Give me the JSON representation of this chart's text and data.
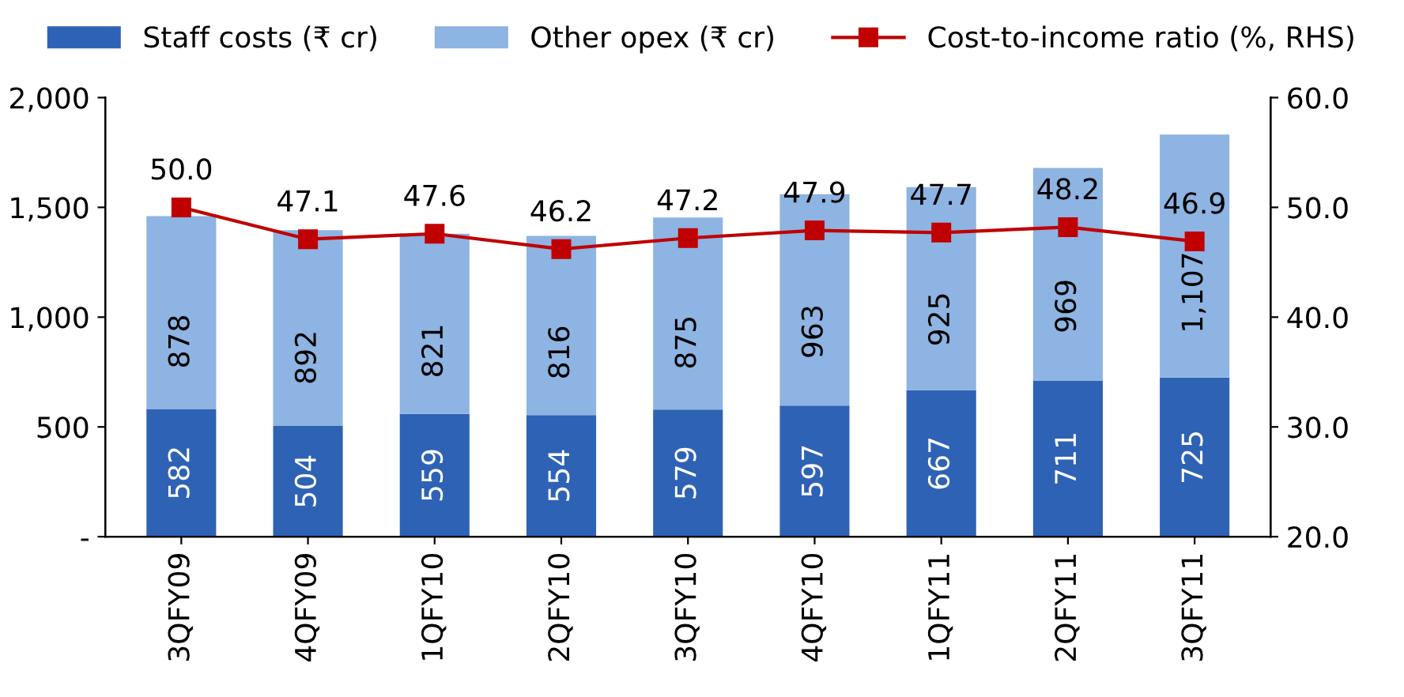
{
  "chart_data": {
    "type": "bar",
    "stacked": true,
    "categories": [
      "3QFY09",
      "4QFY09",
      "1QFY10",
      "2QFY10",
      "3QFY10",
      "4QFY10",
      "1QFY11",
      "2QFY11",
      "3QFY11"
    ],
    "series": [
      {
        "name": "Staff costs (₹ cr)",
        "color": "#2e62b5",
        "values": [
          582,
          504,
          559,
          554,
          579,
          597,
          667,
          711,
          725
        ]
      },
      {
        "name": "Other opex (₹ cr)",
        "color": "#8db4e2",
        "values": [
          878,
          892,
          821,
          816,
          875,
          963,
          925,
          969,
          1107
        ],
        "value_labels": [
          "878",
          "892",
          "821",
          "816",
          "875",
          "963",
          "925",
          "969",
          "1,107"
        ]
      },
      {
        "name": "Cost-to-income ratio (%, RHS)",
        "type": "line",
        "axis": "y2",
        "color": "#c00000",
        "marker": "square",
        "values": [
          50.0,
          47.1,
          47.6,
          46.2,
          47.2,
          47.9,
          47.7,
          48.2,
          46.9
        ],
        "value_labels": [
          "50.0",
          "47.1",
          "47.6",
          "46.2",
          "47.2",
          "47.9",
          "47.7",
          "48.2",
          "46.9"
        ]
      }
    ],
    "data_labels": true,
    "ylim": [
      0,
      2000
    ],
    "yticks": [
      {
        "value": 0,
        "label": "-"
      },
      500,
      {
        "value": 1000,
        "label": "1,000"
      },
      {
        "value": 1500,
        "label": "1,500"
      },
      {
        "value": 2000,
        "label": "2,000"
      }
    ],
    "y2lim": [
      20,
      60
    ],
    "y2ticks": [
      {
        "value": 20,
        "label": "20.0"
      },
      {
        "value": 30,
        "label": "30.0"
      },
      {
        "value": 40,
        "label": "40.0"
      },
      {
        "value": 50,
        "label": "50.0"
      },
      {
        "value": 60,
        "label": "60.0"
      }
    ],
    "legend": "top",
    "grid": false
  }
}
